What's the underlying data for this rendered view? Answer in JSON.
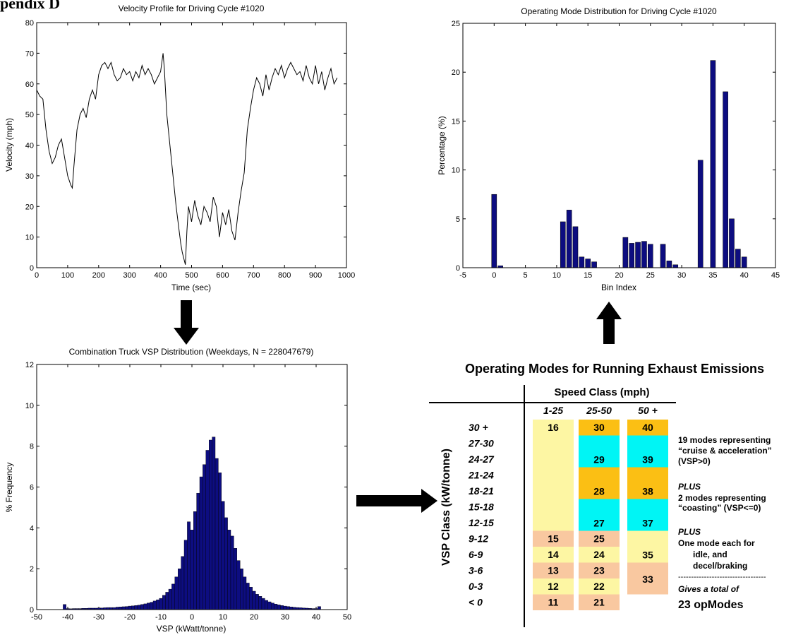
{
  "page_heading": "pendix D",
  "chart_data": [
    {
      "type": "line",
      "title": "Velocity Profile for Driving Cycle #1020",
      "xlabel": "Time (sec)",
      "ylabel": "Velocity (mph)",
      "xlim": [
        0,
        1000
      ],
      "ylim": [
        0,
        80
      ],
      "xticks": [
        "0",
        "100",
        "200",
        "300",
        "400",
        "500",
        "600",
        "700",
        "800",
        "900",
        "1000"
      ],
      "yticks": [
        "0",
        "10",
        "20",
        "30",
        "40",
        "50",
        "60",
        "70",
        "80"
      ],
      "color": "#000000",
      "x": [
        0,
        10,
        20,
        30,
        40,
        50,
        60,
        70,
        80,
        90,
        100,
        110,
        115,
        120,
        130,
        140,
        150,
        160,
        170,
        180,
        190,
        200,
        210,
        220,
        230,
        240,
        250,
        260,
        270,
        280,
        290,
        300,
        310,
        320,
        330,
        340,
        350,
        360,
        370,
        380,
        390,
        400,
        408,
        412,
        420,
        430,
        440,
        450,
        460,
        465,
        470,
        475,
        480,
        485,
        490,
        500,
        510,
        520,
        530,
        540,
        550,
        560,
        570,
        580,
        590,
        600,
        610,
        620,
        630,
        640,
        650,
        660,
        670,
        680,
        690,
        700,
        710,
        720,
        730,
        740,
        750,
        760,
        770,
        780,
        790,
        800,
        810,
        820,
        830,
        840,
        850,
        860,
        870,
        880,
        890,
        900,
        910,
        920,
        930,
        940,
        950,
        960,
        970
      ],
      "values": [
        58,
        56,
        55,
        45,
        38,
        34,
        36,
        40,
        42,
        36,
        30,
        27,
        26,
        33,
        45,
        50,
        52,
        49,
        55,
        58,
        55,
        63,
        66,
        67,
        65,
        67,
        63,
        61,
        62,
        65,
        63,
        64,
        61,
        64,
        62,
        66,
        63,
        65,
        63,
        60,
        62,
        64,
        70,
        65,
        50,
        40,
        30,
        20,
        12,
        8,
        5,
        3,
        1,
        12,
        20,
        15,
        22,
        17,
        14,
        20,
        18,
        15,
        23,
        20,
        10,
        18,
        14,
        19,
        12,
        9,
        18,
        25,
        31,
        45,
        52,
        58,
        62,
        60,
        56,
        63,
        58,
        62,
        65,
        63,
        66,
        62,
        65,
        67,
        65,
        63,
        64,
        61,
        66,
        62,
        60,
        66,
        60,
        64,
        58,
        62,
        65,
        60,
        62
      ]
    },
    {
      "type": "bar",
      "title": "Operating Mode Distribution for Driving Cycle #1020",
      "xlabel": "Bin Index",
      "ylabel": "Percentage (%)",
      "xlim": [
        -5,
        45
      ],
      "ylim": [
        0,
        25
      ],
      "xticks": [
        "-5",
        "0",
        "5",
        "10",
        "15",
        "20",
        "25",
        "30",
        "35",
        "40",
        "45"
      ],
      "yticks": [
        "0",
        "5",
        "10",
        "15",
        "20",
        "25"
      ],
      "color": "#0d0d80",
      "x": [
        0,
        1,
        11,
        12,
        13,
        14,
        15,
        16,
        21,
        22,
        23,
        24,
        25,
        27,
        28,
        29,
        33,
        35,
        37,
        38,
        39,
        40
      ],
      "values": [
        7.5,
        0.2,
        4.7,
        5.9,
        4.2,
        1.1,
        0.9,
        0.6,
        3.1,
        2.5,
        2.6,
        2.7,
        2.4,
        2.4,
        0.7,
        0.3,
        11.0,
        21.2,
        18.0,
        5.0,
        1.9,
        1.1
      ]
    },
    {
      "type": "bar",
      "title": "Combination Truck VSP Distribution (Weekdays, N = 228047679)",
      "xlabel": "VSP (kWatt/tonne)",
      "ylabel": "% Frequency",
      "xlim": [
        -50,
        50
      ],
      "ylim": [
        0,
        12
      ],
      "xticks": [
        "-50",
        "-40",
        "-30",
        "-20",
        "-10",
        "0",
        "10",
        "20",
        "30",
        "40",
        "50"
      ],
      "yticks": [
        "0",
        "2",
        "4",
        "6",
        "8",
        "10",
        "12"
      ],
      "color": "#0d0d80",
      "x": [
        -41,
        -40,
        -39,
        -38,
        -37,
        -36,
        -35,
        -34,
        -33,
        -32,
        -31,
        -30,
        -29,
        -28,
        -27,
        -26,
        -25,
        -24,
        -23,
        -22,
        -21,
        -20,
        -19,
        -18,
        -17,
        -16,
        -15,
        -14,
        -13,
        -12,
        -11,
        -10,
        -9,
        -8,
        -7,
        -6,
        -5,
        -4,
        -3,
        -2,
        -1,
        0,
        1,
        2,
        3,
        4,
        5,
        6,
        7,
        8,
        9,
        10,
        11,
        12,
        13,
        14,
        15,
        16,
        17,
        18,
        19,
        20,
        21,
        22,
        23,
        24,
        25,
        26,
        27,
        28,
        29,
        30,
        31,
        32,
        33,
        34,
        35,
        36,
        37,
        38,
        39,
        40,
        41
      ],
      "values": [
        0.25,
        0.05,
        0.04,
        0.05,
        0.05,
        0.05,
        0.06,
        0.06,
        0.07,
        0.07,
        0.07,
        0.08,
        0.08,
        0.09,
        0.1,
        0.1,
        0.1,
        0.12,
        0.13,
        0.14,
        0.15,
        0.17,
        0.18,
        0.2,
        0.22,
        0.25,
        0.28,
        0.32,
        0.36,
        0.42,
        0.48,
        0.55,
        0.7,
        0.85,
        1.0,
        1.25,
        1.6,
        2.0,
        2.6,
        3.4,
        4.3,
        3.9,
        4.8,
        5.7,
        6.5,
        7.1,
        7.8,
        8.3,
        8.45,
        7.4,
        6.7,
        5.3,
        4.5,
        3.9,
        3.6,
        3.0,
        2.4,
        2.0,
        1.6,
        1.3,
        1.1,
        0.9,
        0.75,
        0.65,
        0.55,
        0.45,
        0.38,
        0.32,
        0.27,
        0.23,
        0.2,
        0.17,
        0.15,
        0.13,
        0.11,
        0.1,
        0.09,
        0.08,
        0.07,
        0.06,
        0.05,
        0.05,
        0.15
      ]
    },
    {
      "type": "table",
      "title": "Operating Modes for Running Exhaust Emissions",
      "col_group_label": "Speed Class (mph)",
      "row_group_label": "VSP Class (kW/tonne)",
      "columns": [
        "1-25",
        "25-50",
        "50 +"
      ],
      "rows": [
        "30 +",
        "27-30",
        "24-27",
        "21-24",
        "18-21",
        "15-18",
        "12-15",
        "9-12",
        "6-9",
        "3-6",
        "0-3",
        "< 0"
      ],
      "cell_colors": {
        "yellow": "#fdf6a3",
        "orange": "#fbbf14",
        "cyan": "#00f5f5",
        "peach": "#f9c8a0"
      },
      "column_segments": [
        [
          {
            "rows": [
              0,
              6
            ],
            "color": "yellow",
            "label": "16"
          },
          {
            "rows": [
              7,
              7
            ],
            "color": "peach",
            "label": "15"
          },
          {
            "rows": [
              8,
              8
            ],
            "color": "yellow",
            "label": "14"
          },
          {
            "rows": [
              9,
              9
            ],
            "color": "peach",
            "label": "13"
          },
          {
            "rows": [
              10,
              10
            ],
            "color": "yellow",
            "label": "12"
          },
          {
            "rows": [
              11,
              11
            ],
            "color": "peach",
            "label": "11"
          }
        ],
        [
          {
            "rows": [
              0,
              0
            ],
            "color": "orange",
            "label": "30"
          },
          {
            "rows": [
              1,
              2
            ],
            "color": "cyan",
            "label": "29"
          },
          {
            "rows": [
              3,
              4
            ],
            "color": "orange",
            "label": "28"
          },
          {
            "rows": [
              5,
              6
            ],
            "color": "cyan",
            "label": "27"
          },
          {
            "rows": [
              7,
              7
            ],
            "color": "peach",
            "label": "25"
          },
          {
            "rows": [
              8,
              8
            ],
            "color": "yellow",
            "label": "24"
          },
          {
            "rows": [
              9,
              9
            ],
            "color": "peach",
            "label": "23"
          },
          {
            "rows": [
              10,
              10
            ],
            "color": "yellow",
            "label": "22"
          },
          {
            "rows": [
              11,
              11
            ],
            "color": "peach",
            "label": "21"
          }
        ],
        [
          {
            "rows": [
              0,
              0
            ],
            "color": "orange",
            "label": "40"
          },
          {
            "rows": [
              1,
              2
            ],
            "color": "cyan",
            "label": "39"
          },
          {
            "rows": [
              3,
              4
            ],
            "color": "orange",
            "label": "38"
          },
          {
            "rows": [
              5,
              6
            ],
            "color": "cyan",
            "label": "37"
          },
          {
            "rows": [
              7,
              8
            ],
            "color": "yellow",
            "label": "35"
          },
          {
            "rows": [
              9,
              10
            ],
            "color": "peach",
            "label": "33"
          }
        ]
      ],
      "notes": {
        "line1": "19 modes representing",
        "line2": "“cruise & acceleration”",
        "line3": "(VSP>0)",
        "plus1": "PLUS",
        "line4": "2 modes representing",
        "line5": "“coasting” (VSP<=0)",
        "plus2": "PLUS",
        "line6": "One mode each for",
        "line7": "idle, and",
        "line8": "decel/braking",
        "divider": "----------------------------------",
        "line9": "Gives a total of",
        "line10": "23 opModes"
      }
    }
  ]
}
